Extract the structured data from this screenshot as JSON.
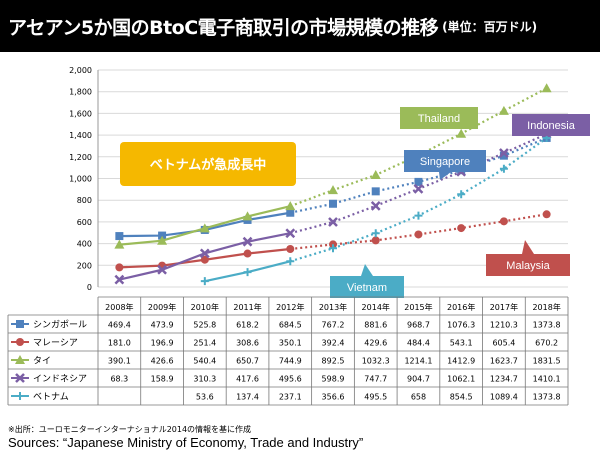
{
  "header": {
    "title": "アセアン5か国のBtoC電子商取引の市場規模の推移",
    "unit": "(単位：百万ドル)"
  },
  "chart_data": {
    "type": "line",
    "title": "アセアン5か国のBtoC電子商取引の市場規模の推移",
    "ylabel": "",
    "xlabel": "",
    "ylim": [
      0,
      2000
    ],
    "yticks": [
      0,
      200,
      400,
      600,
      800,
      1000,
      1200,
      1400,
      1600,
      1800,
      2000
    ],
    "ytick_labels": [
      "0",
      "200",
      "400",
      "600",
      "800",
      "1,000",
      "1,200",
      "1,400",
      "1,600",
      "1,800",
      "2,000"
    ],
    "grid": true,
    "categories": [
      "2008年",
      "2009年",
      "2010年",
      "2011年",
      "2012年",
      "2013年",
      "2014年",
      "2015年",
      "2016年",
      "2017年",
      "2018年"
    ],
    "actual_through_index": 4,
    "series": [
      {
        "name": "シンガポール",
        "color": "#4F81BD",
        "marker": "square",
        "label": "Singapore",
        "values": [
          469.4,
          473.9,
          525.8,
          618.2,
          684.5,
          767.2,
          881.6,
          968.7,
          1076.3,
          1210.3,
          1373.8
        ],
        "table_values": [
          "469.4",
          "473.9",
          "525.8",
          "618.2",
          "684.5",
          "767.2",
          "881.6",
          "968.7",
          "1076.3",
          "1210.3",
          "1373.8"
        ]
      },
      {
        "name": "マレーシア",
        "color": "#C0504D",
        "marker": "circle",
        "label": "Malaysia",
        "values": [
          181.0,
          196.9,
          251.4,
          308.6,
          350.1,
          392.4,
          429.6,
          484.4,
          543.1,
          605.4,
          670.2
        ],
        "table_values": [
          "181.0",
          "196.9",
          "251.4",
          "308.6",
          "350.1",
          "392.4",
          "429.6",
          "484.4",
          "543.1",
          "605.4",
          "670.2"
        ]
      },
      {
        "name": "タイ",
        "color": "#9BBB59",
        "marker": "triangle",
        "label": "Thailand",
        "values": [
          390.1,
          426.6,
          540.4,
          650.7,
          744.9,
          892.5,
          1032.3,
          1214.1,
          1412.9,
          1623.7,
          1831.5
        ],
        "table_values": [
          "390.1",
          "426.6",
          "540.4",
          "650.7",
          "744.9",
          "892.5",
          "1032.3",
          "1214.1",
          "1412.9",
          "1623.7",
          "1831.5"
        ]
      },
      {
        "name": "インドネシア",
        "color": "#7B5FA5",
        "marker": "x",
        "label": "Indonesia",
        "values": [
          68.3,
          158.9,
          310.3,
          417.6,
          495.6,
          598.9,
          747.7,
          904.7,
          1062.1,
          1234.7,
          1410.1
        ],
        "table_values": [
          "68.3",
          "158.9",
          "310.3",
          "417.6",
          "495.6",
          "598.9",
          "747.7",
          "904.7",
          "1062.1",
          "1234.7",
          "1410.1"
        ]
      },
      {
        "name": "ベトナム",
        "color": "#4BACC6",
        "marker": "star",
        "label": "Vietnam",
        "values": [
          null,
          null,
          53.6,
          137.4,
          237.1,
          356.6,
          495.5,
          658,
          854.5,
          1089.4,
          1373.8
        ],
        "table_values": [
          "",
          "",
          "53.6",
          "137.4",
          "237.1",
          "356.6",
          "495.5",
          "658",
          "854.5",
          "1089.4",
          "1373.8"
        ]
      }
    ],
    "annotations": [
      {
        "text": "ベトナムが急成長中",
        "color": "#F5B800"
      }
    ]
  },
  "footer": {
    "note": "※出所：ユーロモニターインターナショナル2014の情報を基に作成",
    "source": "Sources: “Japanese Ministry of Economy, Trade and Industry”"
  }
}
